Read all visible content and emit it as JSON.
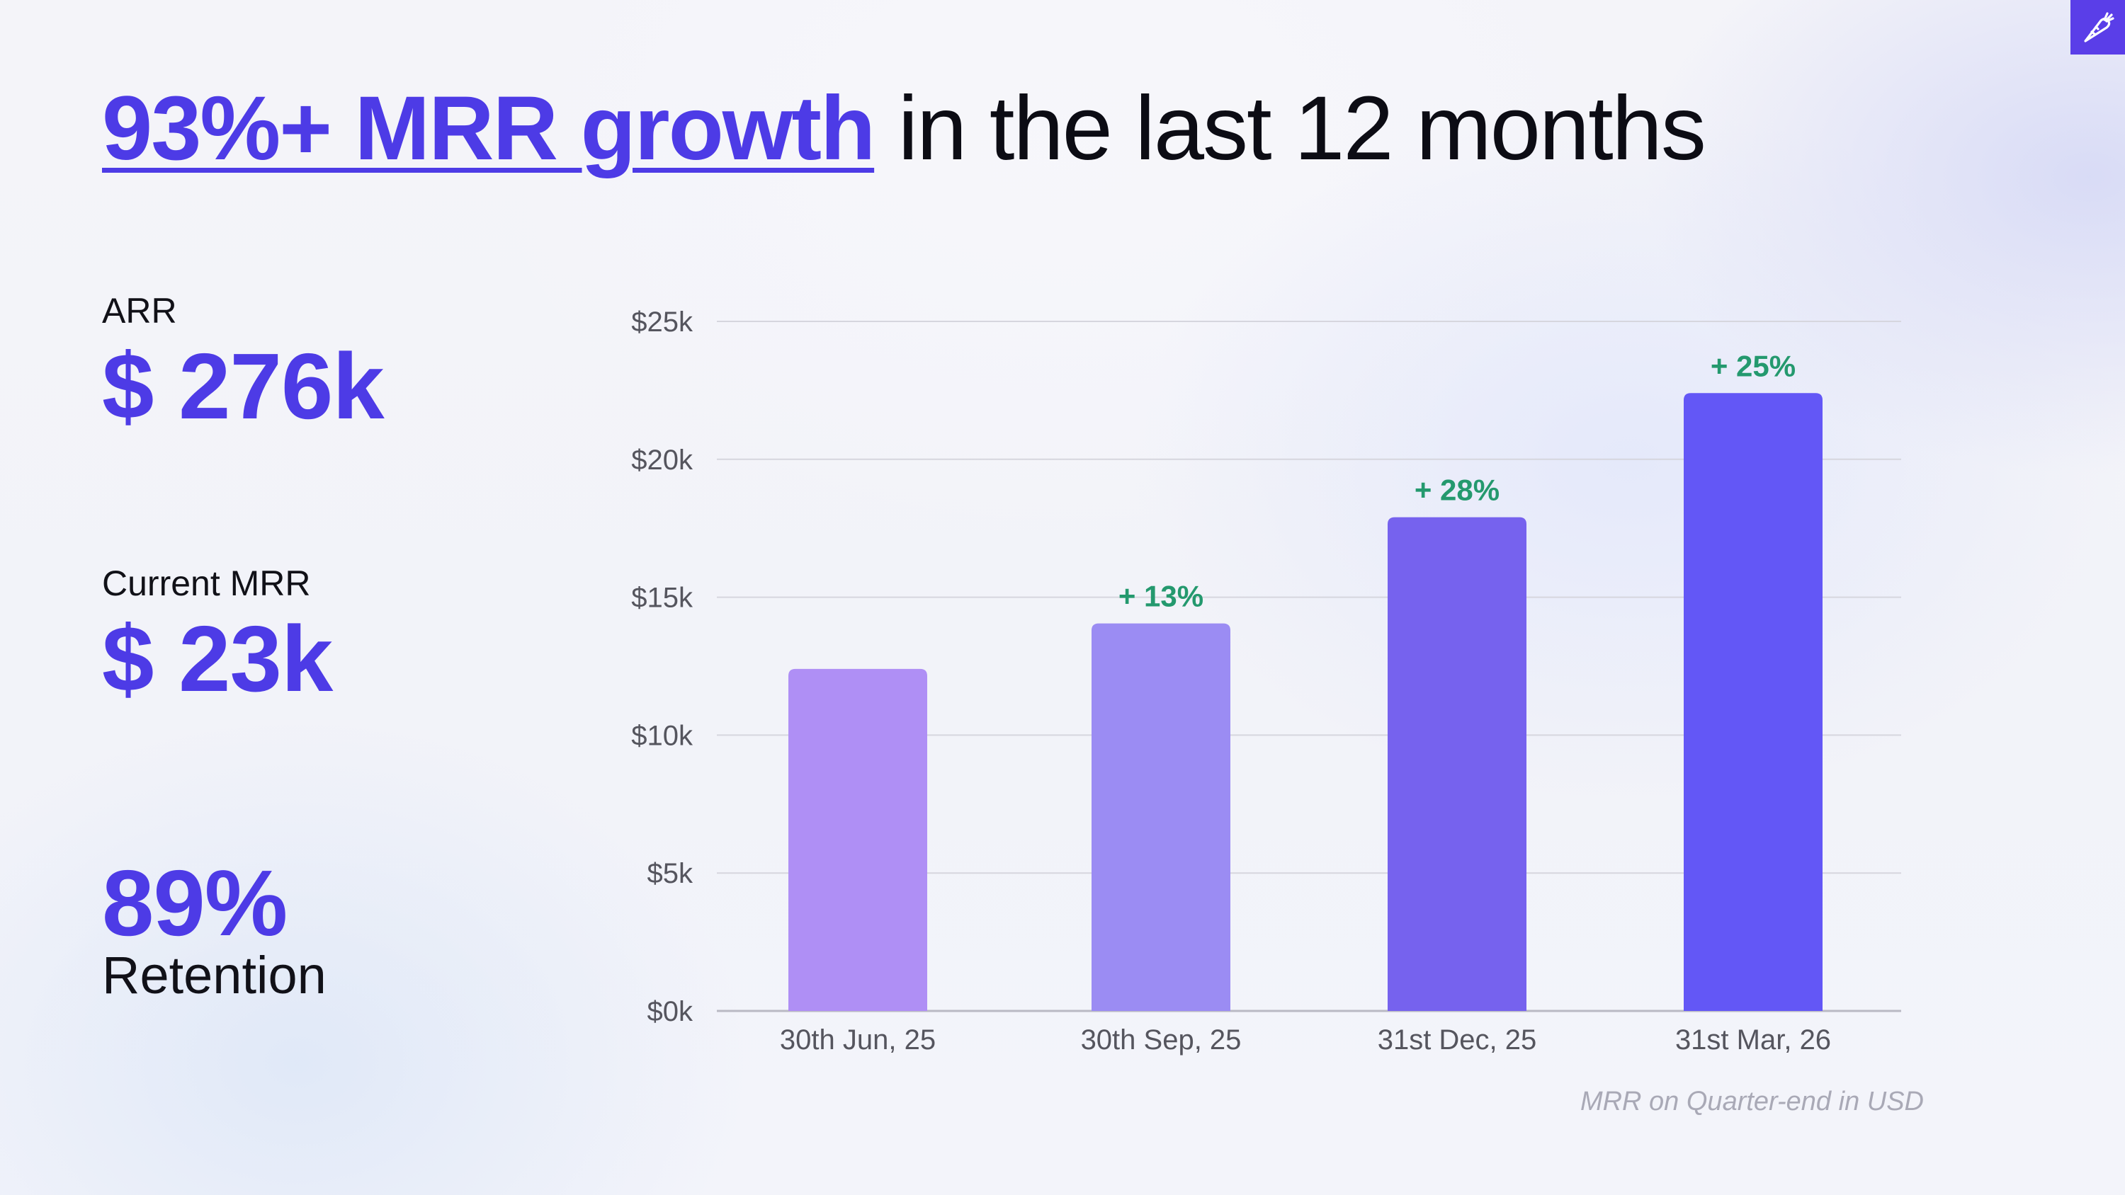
{
  "title": {
    "highlight": "93%+ MRR growth",
    "rest": "in the last 12 months"
  },
  "kpis": {
    "arr_label": "ARR",
    "arr_value": "$ 276k",
    "mrr_label": "Current MRR",
    "mrr_value": "$ 23k",
    "retention_value": "89%",
    "retention_label": "Retention"
  },
  "note": "MRR on Quarter-end in USD",
  "chart_data": {
    "type": "bar",
    "title": "",
    "xlabel": "",
    "ylabel": "",
    "ylim": [
      0,
      25000
    ],
    "grid": true,
    "categories": [
      "30th Jun, 25",
      "30th Sep, 25",
      "31st Dec, 25",
      "31st Mar, 26"
    ],
    "values": [
      12400,
      14050,
      17900,
      22400
    ],
    "y_tick_values": [
      0,
      5000,
      10000,
      15000,
      20000,
      25000
    ],
    "y_ticks": [
      "$0k",
      "$5k",
      "$10k",
      "$15k",
      "$20k",
      "$25k"
    ],
    "data_labels": [
      "",
      "+ 13%",
      "+ 28%",
      "+ 25%"
    ],
    "bar_colors": [
      "#af8ff5",
      "#9b8cf3",
      "#7662ee",
      "#6357f6"
    ],
    "label_color": "#24996e",
    "grid_color": "#d6d6de",
    "tick_color": "#55555e"
  }
}
